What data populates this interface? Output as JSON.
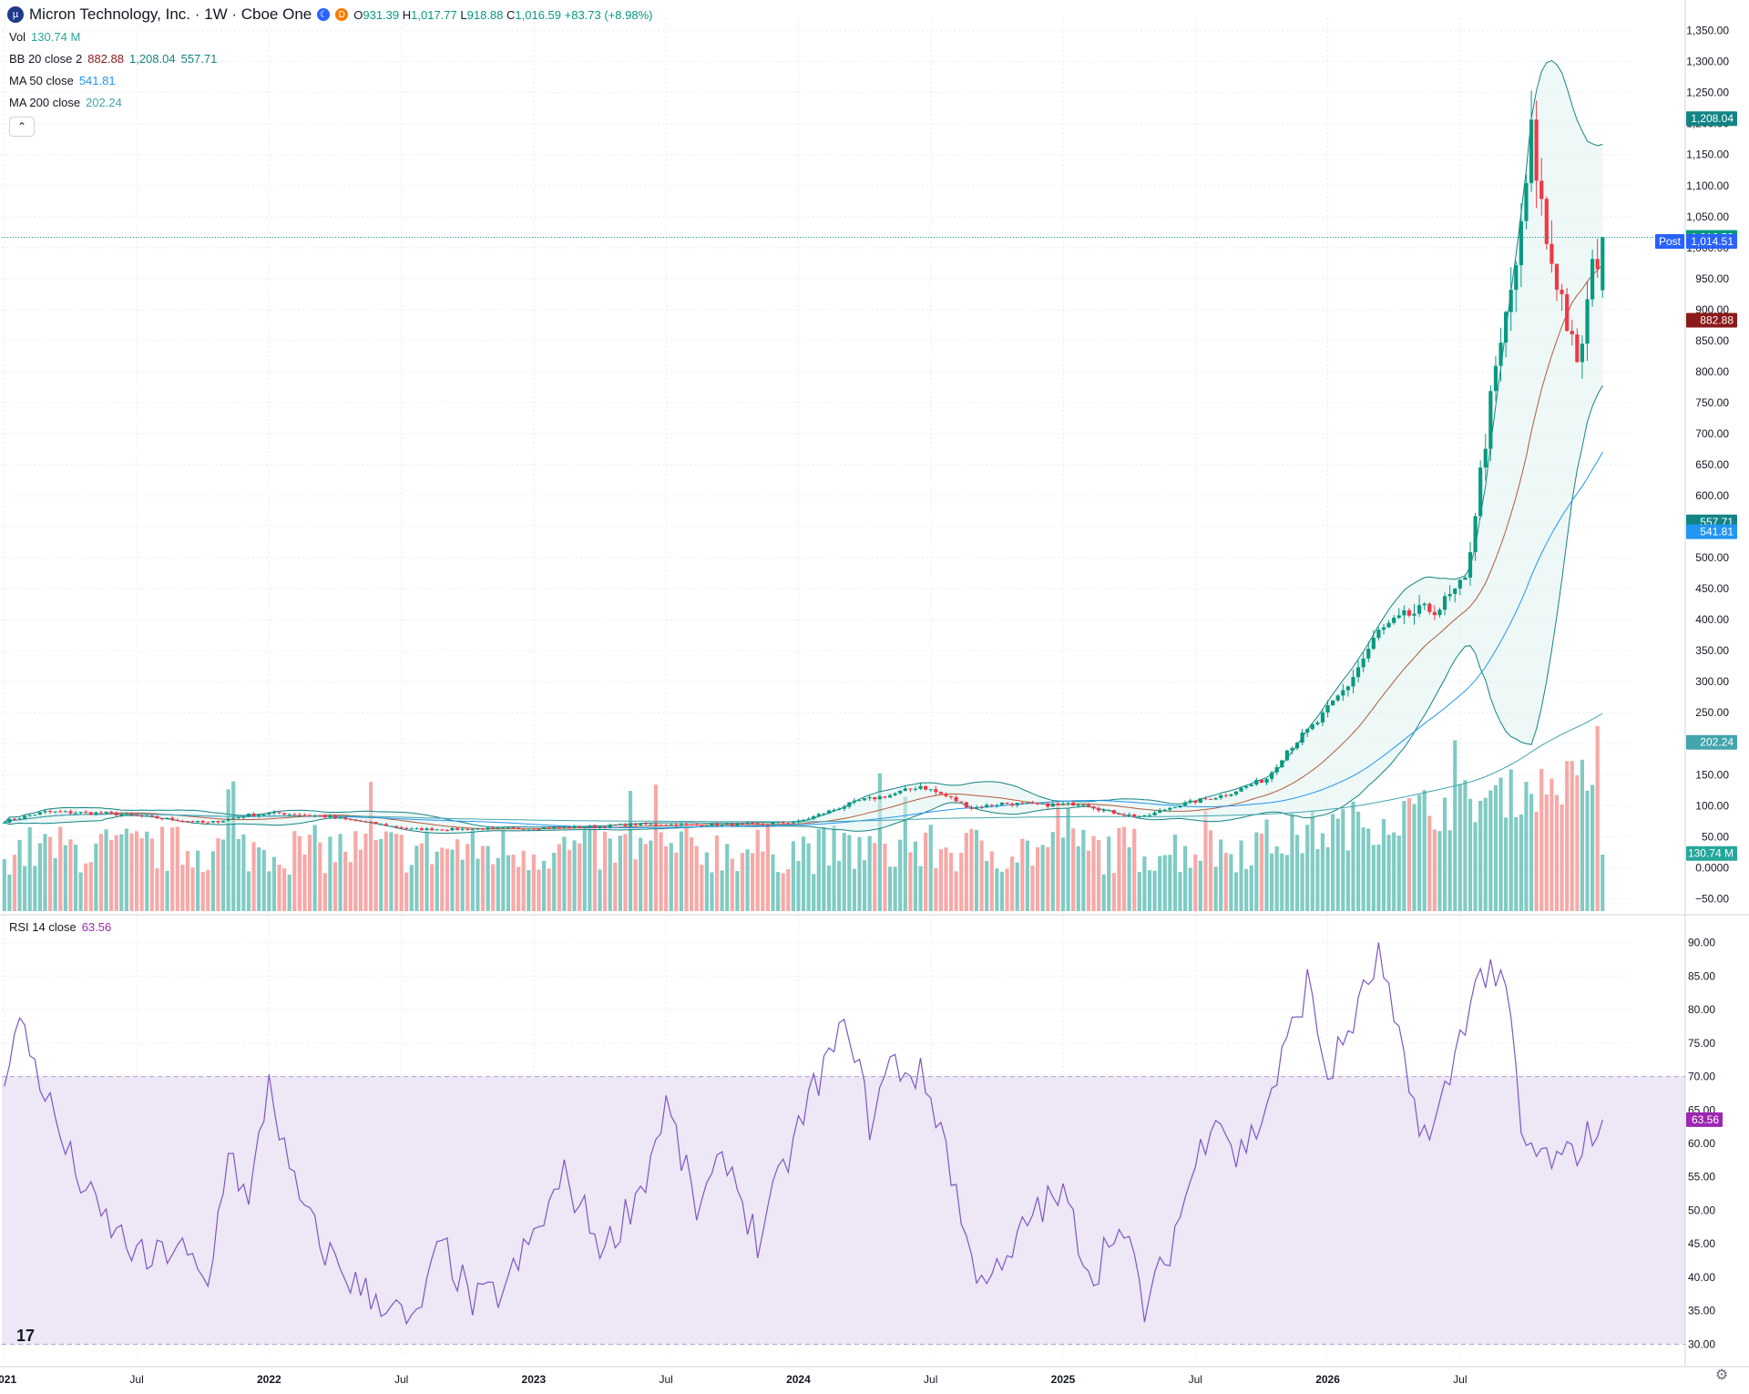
{
  "header": {
    "symbol_title": "Micron Technology, Inc. · 1W · Cboe One",
    "logo_icon": "micron-logo-icon",
    "badges": [
      {
        "icon": "moon-icon",
        "color": "#2962ff"
      },
      {
        "icon": "dividend-d-icon",
        "color": "#f57c00",
        "text": "D"
      }
    ],
    "ohlc": {
      "o_label": "O",
      "o": "931.39",
      "h_label": "H",
      "h": "1,017.77",
      "l_label": "L",
      "l": "918.88",
      "c_label": "C",
      "c": "1,016.59",
      "change": "+83.73 (+8.98%)"
    }
  },
  "indicators": {
    "vol": {
      "label": "Vol",
      "value": "130.74 M"
    },
    "bb": {
      "label": "BB 20 close 2",
      "basis": "882.88",
      "upper": "1,208.04",
      "lower": "557.71"
    },
    "ma50": {
      "label": "MA 50 close",
      "value": "541.81"
    },
    "ma200": {
      "label": "MA 200 close",
      "value": "202.24"
    },
    "rsi": {
      "label": "RSI 14 close",
      "value": "63.56"
    }
  },
  "colors": {
    "up": "#089981",
    "down": "#f23645",
    "vol_up": "#80cbc4",
    "vol_down": "#f7a9a7",
    "bb_basis": "#b05b3b",
    "bb_band": "#138484",
    "bb_fill": "#e0f2f1",
    "ma50": "#2196f3",
    "ma200": "#43a5ad",
    "rsi_line": "#7e57c2",
    "rsi_band": "#ede7f6",
    "post": "#2962ff"
  },
  "price_axis": {
    "ticks": [
      "1,350.00",
      "1,300.00",
      "1,250.00",
      "1,200.00",
      "1,150.00",
      "1,100.00",
      "1,050.00",
      "1,000.00",
      "950.00",
      "900.00",
      "850.00",
      "800.00",
      "750.00",
      "700.00",
      "650.00",
      "600.00",
      "550.00",
      "500.00",
      "450.00",
      "400.00",
      "350.00",
      "300.00",
      "250.00",
      "200.00",
      "150.00",
      "100.00",
      "50.00",
      "0.0000",
      "−50.00"
    ],
    "tick_values": [
      1350,
      1300,
      1250,
      1200,
      1150,
      1100,
      1050,
      1000,
      950,
      900,
      850,
      800,
      750,
      700,
      650,
      600,
      550,
      500,
      450,
      400,
      350,
      300,
      250,
      200,
      150,
      100,
      50,
      0,
      -50
    ],
    "labels": [
      {
        "text": "1,208.04",
        "value": 1208.04,
        "color": "#138484"
      },
      {
        "text": "1,016.59",
        "value": 1016.59,
        "color": "#089981"
      },
      {
        "text": "1,014.51",
        "value": 1010,
        "color": "#2962ff",
        "tag": "Post"
      },
      {
        "text": "882.88",
        "value": 882.88,
        "color": "#8b1a1a"
      },
      {
        "text": "557.71",
        "value": 557.71,
        "color": "#138484"
      },
      {
        "text": "541.81",
        "value": 541.81,
        "color": "#2196f3"
      },
      {
        "text": "202.24",
        "value": 202.24,
        "color": "#43a5ad"
      },
      {
        "text": "130.74 M",
        "value": 23,
        "color": "#26a69a"
      }
    ]
  },
  "rsi_axis": {
    "ticks": [
      "90.00",
      "85.00",
      "80.00",
      "75.00",
      "70.00",
      "65.00",
      "60.00",
      "55.00",
      "50.00",
      "45.00",
      "40.00",
      "35.00",
      "30.00"
    ],
    "tick_values": [
      90,
      85,
      80,
      75,
      70,
      65,
      60,
      55,
      50,
      45,
      40,
      35,
      30
    ],
    "label": {
      "text": "63.56",
      "value": 63.56,
      "color": "#9c27b0"
    }
  },
  "time_axis": {
    "labels": [
      {
        "text": "2021",
        "week": 0,
        "bold": true
      },
      {
        "text": "Jul",
        "week": 26,
        "bold": false
      },
      {
        "text": "2022",
        "week": 52,
        "bold": true
      },
      {
        "text": "Jul",
        "week": 78,
        "bold": false
      },
      {
        "text": "2023",
        "week": 104,
        "bold": true
      },
      {
        "text": "Jul",
        "week": 130,
        "bold": false
      },
      {
        "text": "2024",
        "week": 156,
        "bold": true
      },
      {
        "text": "Jul",
        "week": 182,
        "bold": false
      },
      {
        "text": "2025",
        "week": 208,
        "bold": true
      },
      {
        "text": "Jul",
        "week": 234,
        "bold": false
      },
      {
        "text": "2026",
        "week": 260,
        "bold": true
      },
      {
        "text": "Jul",
        "week": 286,
        "bold": false
      }
    ]
  },
  "chart_data": {
    "type": "candlestick",
    "interval": "1W",
    "x_unit": "weeks since start of 2021",
    "price_range": [
      -70,
      1370
    ],
    "rsi_range": [
      28,
      92
    ],
    "rsi_band": [
      30,
      70
    ],
    "price_anchors": [
      [
        0,
        75
      ],
      [
        8,
        90
      ],
      [
        20,
        88
      ],
      [
        28,
        82
      ],
      [
        40,
        72
      ],
      [
        48,
        85
      ],
      [
        54,
        88
      ],
      [
        64,
        82
      ],
      [
        72,
        72
      ],
      [
        80,
        62
      ],
      [
        88,
        62
      ],
      [
        96,
        63
      ],
      [
        104,
        64
      ],
      [
        116,
        66
      ],
      [
        124,
        70
      ],
      [
        136,
        69
      ],
      [
        148,
        70
      ],
      [
        156,
        74
      ],
      [
        168,
        108
      ],
      [
        174,
        117
      ],
      [
        180,
        132
      ],
      [
        186,
        112
      ],
      [
        190,
        96
      ],
      [
        196,
        104
      ],
      [
        204,
        101
      ],
      [
        212,
        104
      ],
      [
        216,
        92
      ],
      [
        220,
        86
      ],
      [
        224,
        82
      ],
      [
        230,
        100
      ],
      [
        240,
        118
      ],
      [
        248,
        144
      ],
      [
        252,
        190
      ],
      [
        258,
        235
      ],
      [
        264,
        295
      ],
      [
        270,
        380
      ],
      [
        276,
        408
      ],
      [
        282,
        420
      ],
      [
        287,
        460
      ],
      [
        292,
        750
      ],
      [
        298,
        1020
      ],
      [
        300,
        1180
      ],
      [
        303,
        1010
      ],
      [
        306,
        920
      ],
      [
        309,
        800
      ],
      [
        312,
        960
      ],
      [
        314,
        1016
      ]
    ],
    "rsi_anchors": [
      [
        0,
        71
      ],
      [
        3,
        78
      ],
      [
        6,
        72
      ],
      [
        12,
        59
      ],
      [
        18,
        50
      ],
      [
        24,
        45
      ],
      [
        28,
        42
      ],
      [
        34,
        45
      ],
      [
        40,
        38
      ],
      [
        44,
        60
      ],
      [
        48,
        50
      ],
      [
        52,
        70
      ],
      [
        56,
        55
      ],
      [
        62,
        45
      ],
      [
        70,
        38
      ],
      [
        76,
        36
      ],
      [
        80,
        32
      ],
      [
        86,
        45
      ],
      [
        92,
        36
      ],
      [
        98,
        38
      ],
      [
        104,
        46
      ],
      [
        110,
        55
      ],
      [
        118,
        44
      ],
      [
        126,
        55
      ],
      [
        130,
        66
      ],
      [
        136,
        50
      ],
      [
        142,
        58
      ],
      [
        148,
        45
      ],
      [
        154,
        58
      ],
      [
        160,
        70
      ],
      [
        166,
        78
      ],
      [
        170,
        63
      ],
      [
        174,
        72
      ],
      [
        180,
        70
      ],
      [
        184,
        63
      ],
      [
        190,
        42
      ],
      [
        196,
        40
      ],
      [
        202,
        50
      ],
      [
        208,
        52
      ],
      [
        214,
        40
      ],
      [
        218,
        48
      ],
      [
        222,
        42
      ],
      [
        224,
        35
      ],
      [
        228,
        42
      ],
      [
        232,
        52
      ],
      [
        238,
        66
      ],
      [
        242,
        58
      ],
      [
        246,
        62
      ],
      [
        250,
        70
      ],
      [
        256,
        84
      ],
      [
        260,
        70
      ],
      [
        266,
        80
      ],
      [
        270,
        88
      ],
      [
        276,
        68
      ],
      [
        280,
        60
      ],
      [
        284,
        70
      ],
      [
        288,
        82
      ],
      [
        292,
        87
      ],
      [
        296,
        79
      ],
      [
        298,
        60
      ],
      [
        302,
        58
      ],
      [
        306,
        57
      ],
      [
        310,
        60
      ],
      [
        314,
        63.56
      ]
    ],
    "last": {
      "open": 931.39,
      "high": 1017.77,
      "low": 918.88,
      "close": 1016.59,
      "change": 83.73,
      "change_pct": 8.98
    },
    "last_indicators": {
      "bb_upper": 1208.04,
      "bb_basis": 882.88,
      "bb_lower": 557.71,
      "ma50": 541.81,
      "ma200": 202.24,
      "rsi": 63.56,
      "volume_m": 130.74
    },
    "n_weeks": 315
  }
}
